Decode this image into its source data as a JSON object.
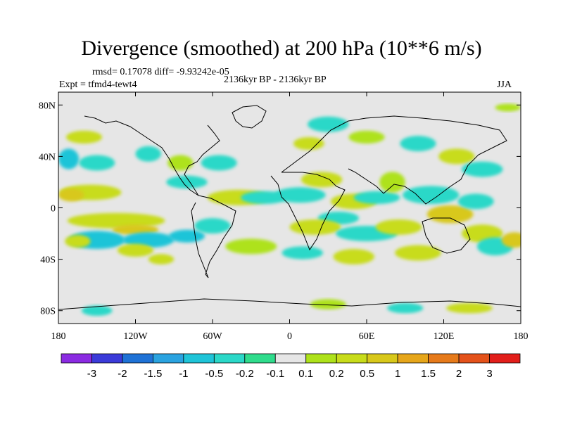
{
  "header": {
    "title": "Divergence (smoothed) at 200 hPa (10**6 m/s)",
    "stats": "rmsd= 0.17078 diff= -9.93242e-05",
    "expt": "Expt = tfmd4-tewt4",
    "period": "2136kyr BP - 2136kyr BP",
    "season": "JJA"
  },
  "colors": {
    "land_fill": "#e6e6e6",
    "levels": [
      "#8b2be2",
      "#3b3bd9",
      "#1f72d6",
      "#2aa3e0",
      "#1fc4d8",
      "#2bd8c8",
      "#2fdc8c",
      "#e6e6e6",
      "#aee21a",
      "#c8dc1a",
      "#d8c81a",
      "#e6a61a",
      "#e67a1a",
      "#e4521a",
      "#e21e1a"
    ]
  },
  "chart_data": {
    "type": "heatmap",
    "title": "Divergence (smoothed) at 200 hPa (10**6 m/s)",
    "projection": "cylindrical equidistant",
    "x_range": [
      -180,
      180
    ],
    "y_range": [
      -90,
      90
    ],
    "x_ticks": [
      {
        "value": -180,
        "label": "180"
      },
      {
        "value": -120,
        "label": "120W"
      },
      {
        "value": -60,
        "label": "60W"
      },
      {
        "value": 0,
        "label": "0"
      },
      {
        "value": 60,
        "label": "60E"
      },
      {
        "value": 120,
        "label": "120E"
      },
      {
        "value": 180,
        "label": "180"
      }
    ],
    "y_ticks": [
      {
        "value": 80,
        "label": "80N"
      },
      {
        "value": 40,
        "label": "40N"
      },
      {
        "value": 0,
        "label": "0"
      },
      {
        "value": -40,
        "label": "40S"
      },
      {
        "value": -80,
        "label": "80S"
      }
    ],
    "colorbar": {
      "labels": [
        "-3",
        "-2",
        "-1.5",
        "-1",
        "-0.5",
        "-0.2",
        "-0.1",
        "0.1",
        "0.2",
        "0.5",
        "1",
        "1.5",
        "2",
        "3"
      ]
    },
    "blobs": [
      {
        "lon": -172,
        "lat": 38,
        "rx": 8,
        "ry": 8,
        "level": -0.5
      },
      {
        "lon": -150,
        "lat": 35,
        "rx": 14,
        "ry": 6,
        "level": -0.3
      },
      {
        "lon": -155,
        "lat": 12,
        "rx": 24,
        "ry": 6,
        "level": 0.3
      },
      {
        "lon": -170,
        "lat": 10,
        "rx": 10,
        "ry": 5,
        "level": 0.6
      },
      {
        "lon": -135,
        "lat": -10,
        "rx": 38,
        "ry": 6,
        "level": 0.4
      },
      {
        "lon": -120,
        "lat": -17,
        "rx": 18,
        "ry": 4,
        "level": 0.9
      },
      {
        "lon": -150,
        "lat": -25,
        "rx": 22,
        "ry": 7,
        "level": -0.6
      },
      {
        "lon": -165,
        "lat": -26,
        "rx": 10,
        "ry": 5,
        "level": 0.3
      },
      {
        "lon": -110,
        "lat": -25,
        "rx": 20,
        "ry": 6,
        "level": -0.5
      },
      {
        "lon": -80,
        "lat": -22,
        "rx": 14,
        "ry": 5,
        "level": -0.5
      },
      {
        "lon": -60,
        "lat": -14,
        "rx": 14,
        "ry": 6,
        "level": -0.4
      },
      {
        "lon": -120,
        "lat": -33,
        "rx": 14,
        "ry": 5,
        "level": 0.3
      },
      {
        "lon": -100,
        "lat": -40,
        "rx": 10,
        "ry": 4,
        "level": 0.3
      },
      {
        "lon": -160,
        "lat": 55,
        "rx": 14,
        "ry": 5,
        "level": 0.3
      },
      {
        "lon": -110,
        "lat": 42,
        "rx": 10,
        "ry": 6,
        "level": -0.4
      },
      {
        "lon": -85,
        "lat": 35,
        "rx": 10,
        "ry": 6,
        "level": 0.2
      },
      {
        "lon": -80,
        "lat": 20,
        "rx": 16,
        "ry": 5,
        "level": -0.3
      },
      {
        "lon": -55,
        "lat": 35,
        "rx": 14,
        "ry": 6,
        "level": -0.3
      },
      {
        "lon": -40,
        "lat": 8,
        "rx": 24,
        "ry": 6,
        "level": 0.3
      },
      {
        "lon": -20,
        "lat": 8,
        "rx": 18,
        "ry": 5,
        "level": -0.4
      },
      {
        "lon": 8,
        "lat": 10,
        "rx": 20,
        "ry": 6,
        "level": -0.4
      },
      {
        "lon": 25,
        "lat": 22,
        "rx": 16,
        "ry": 6,
        "level": 0.3
      },
      {
        "lon": 50,
        "lat": 5,
        "rx": 18,
        "ry": 6,
        "level": 0.5
      },
      {
        "lon": 38,
        "lat": -8,
        "rx": 16,
        "ry": 5,
        "level": -0.3
      },
      {
        "lon": 68,
        "lat": 8,
        "rx": 18,
        "ry": 5,
        "level": -0.3
      },
      {
        "lon": 80,
        "lat": 20,
        "rx": 10,
        "ry": 8,
        "level": 0.2
      },
      {
        "lon": 20,
        "lat": -15,
        "rx": 20,
        "ry": 6,
        "level": 0.3
      },
      {
        "lon": 60,
        "lat": -20,
        "rx": 24,
        "ry": 6,
        "level": -0.3
      },
      {
        "lon": 85,
        "lat": -15,
        "rx": 18,
        "ry": 6,
        "level": 0.3
      },
      {
        "lon": 125,
        "lat": -5,
        "rx": 18,
        "ry": 7,
        "level": 0.9
      },
      {
        "lon": 110,
        "lat": 10,
        "rx": 22,
        "ry": 7,
        "level": -0.3
      },
      {
        "lon": 145,
        "lat": 5,
        "rx": 14,
        "ry": 6,
        "level": -0.3
      },
      {
        "lon": 150,
        "lat": -20,
        "rx": 16,
        "ry": 7,
        "level": 0.3
      },
      {
        "lon": 160,
        "lat": -30,
        "rx": 14,
        "ry": 7,
        "level": -0.3
      },
      {
        "lon": 175,
        "lat": -25,
        "rx": 10,
        "ry": 6,
        "level": 0.7
      },
      {
        "lon": 100,
        "lat": -35,
        "rx": 18,
        "ry": 6,
        "level": 0.3
      },
      {
        "lon": 50,
        "lat": -38,
        "rx": 16,
        "ry": 6,
        "level": 0.3
      },
      {
        "lon": 10,
        "lat": -35,
        "rx": 16,
        "ry": 5,
        "level": -0.3
      },
      {
        "lon": -30,
        "lat": -30,
        "rx": 20,
        "ry": 6,
        "level": 0.2
      },
      {
        "lon": 15,
        "lat": 50,
        "rx": 12,
        "ry": 5,
        "level": 0.3
      },
      {
        "lon": 30,
        "lat": 65,
        "rx": 16,
        "ry": 6,
        "level": -0.3
      },
      {
        "lon": 60,
        "lat": 55,
        "rx": 14,
        "ry": 5,
        "level": 0.2
      },
      {
        "lon": 100,
        "lat": 50,
        "rx": 14,
        "ry": 6,
        "level": -0.3
      },
      {
        "lon": 130,
        "lat": 40,
        "rx": 14,
        "ry": 6,
        "level": 0.5
      },
      {
        "lon": 150,
        "lat": 30,
        "rx": 16,
        "ry": 6,
        "level": -0.4
      },
      {
        "lon": 170,
        "lat": 78,
        "rx": 10,
        "ry": 3,
        "level": 0.2
      },
      {
        "lon": -150,
        "lat": -80,
        "rx": 12,
        "ry": 4,
        "level": -0.3
      },
      {
        "lon": 90,
        "lat": -78,
        "rx": 14,
        "ry": 4,
        "level": -0.3
      },
      {
        "lon": 140,
        "lat": -78,
        "rx": 18,
        "ry": 4,
        "level": 0.3
      },
      {
        "lon": 30,
        "lat": -75,
        "rx": 14,
        "ry": 4,
        "level": 0.2
      }
    ]
  }
}
